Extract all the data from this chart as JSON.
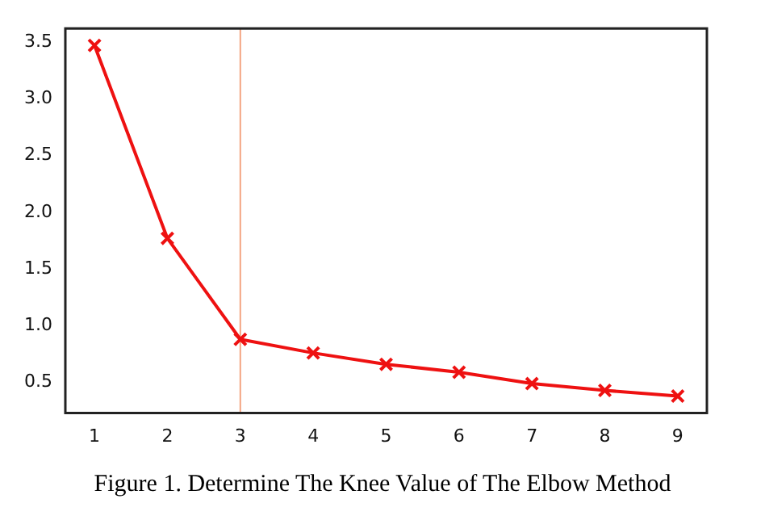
{
  "chart_data": {
    "type": "line",
    "x": [
      1,
      2,
      3,
      4,
      5,
      6,
      7,
      8,
      9
    ],
    "series": [
      {
        "color": "#ee1111",
        "values": [
          3.47,
          1.77,
          0.88,
          0.76,
          0.66,
          0.59,
          0.49,
          0.43,
          0.38
        ]
      }
    ],
    "xlim": [
      0.6,
      9.4
    ],
    "xticks": [
      1,
      2,
      3,
      4,
      5,
      6,
      7,
      8,
      9
    ],
    "ylim": [
      0.23,
      3.62
    ],
    "yticks": [
      0.5,
      {
        "value": 1,
        "label": "1.0"
      },
      1.5,
      {
        "value": 2,
        "label": "2.0"
      },
      2.5,
      {
        "value": 3,
        "label": "3.0"
      },
      3.5
    ],
    "ref_lines": [
      {
        "axis": "x",
        "value": 3,
        "color": "#f4a582"
      }
    ],
    "marker": "cross",
    "grid": false,
    "legend": false,
    "annotations": [
      "Figure 1. Determine The Knee Value of The Elbow Method"
    ]
  }
}
